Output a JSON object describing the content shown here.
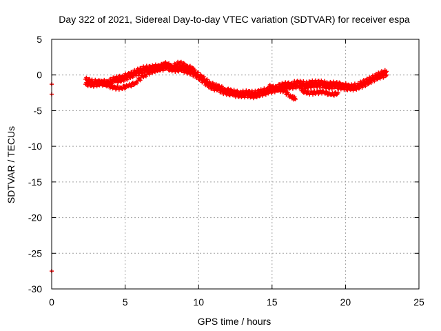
{
  "chart_data": {
    "type": "scatter",
    "title": "Day 322 of 2021, Sidereal Day-to-day VTEC variation (SDTVAR) for receiver espa",
    "xlabel": "GPS time / hours",
    "ylabel": "SDTVAR / TECUs",
    "xlim": [
      0,
      25
    ],
    "ylim": [
      -30,
      5
    ],
    "xticks": [
      0,
      5,
      10,
      15,
      20,
      25
    ],
    "yticks": [
      5,
      0,
      -5,
      -10,
      -15,
      -20,
      -25,
      -30
    ],
    "grid": true,
    "series": [
      {
        "name": "SDTVAR",
        "color": "#ff0000",
        "marker": "plus",
        "isolated_points": [
          {
            "x": 0.0,
            "y": -1.3
          },
          {
            "x": 0.0,
            "y": -2.7
          },
          {
            "x": 0.0,
            "y": -27.5
          }
        ],
        "tracks": [
          {
            "x": [
              2.3,
              2.8,
              3.3,
              3.8,
              4.3,
              4.8,
              5.3,
              5.8,
              6.3,
              6.8,
              7.3,
              7.8,
              8.3,
              8.8,
              9.3,
              9.8,
              10.3,
              10.8,
              11.3,
              11.8,
              12.3,
              12.8,
              13.3,
              13.8,
              14.3,
              14.8,
              15.3,
              15.8,
              16.3,
              16.8,
              17.3,
              17.8,
              18.3,
              18.8,
              19.3,
              19.8,
              20.3,
              20.8,
              21.3,
              21.8,
              22.3,
              22.8
            ],
            "y": [
              -0.6,
              -0.9,
              -1.0,
              -0.9,
              -0.5,
              -0.2,
              0.1,
              0.6,
              1.0,
              1.1,
              1.3,
              1.4,
              1.1,
              1.2,
              0.9,
              0.4,
              -0.4,
              -1.2,
              -1.6,
              -2.0,
              -2.3,
              -2.5,
              -2.4,
              -2.5,
              -2.2,
              -2.0,
              -1.6,
              -1.3,
              -1.2,
              -1.0,
              -1.2,
              -1.0,
              -1.0,
              -1.2,
              -1.2,
              -1.3,
              -1.6,
              -1.4,
              -0.9,
              -0.4,
              0.2,
              0.5
            ]
          },
          {
            "x": [
              2.3,
              2.8,
              3.3,
              3.8,
              4.3,
              4.8,
              5.3,
              5.8,
              6.3,
              6.8,
              7.3,
              7.8,
              8.3,
              8.8,
              9.3,
              9.8,
              10.3,
              10.8,
              11.3,
              11.8,
              12.3,
              12.8,
              13.3,
              13.8,
              14.3,
              14.8,
              15.3,
              15.8,
              16.3,
              16.8,
              17.3,
              17.8,
              18.3,
              18.8,
              19.3,
              19.8,
              20.3,
              20.8,
              21.3,
              21.8,
              22.3,
              22.8
            ],
            "y": [
              -1.3,
              -1.4,
              -1.3,
              -1.2,
              -0.9,
              -0.7,
              -0.3,
              0.2,
              0.6,
              0.7,
              0.8,
              0.9,
              0.7,
              0.7,
              0.4,
              -0.1,
              -0.9,
              -1.7,
              -2.1,
              -2.5,
              -2.8,
              -2.9,
              -2.9,
              -3.0,
              -2.7,
              -2.4,
              -2.1,
              -1.8,
              -1.7,
              -1.6,
              -1.7,
              -1.5,
              -1.5,
              -1.7,
              -1.7,
              -1.8,
              -2.0,
              -1.8,
              -1.4,
              -0.8,
              -0.3,
              0.0
            ]
          },
          {
            "x": [
              3.2,
              3.7,
              4.2,
              4.7,
              5.2,
              5.7,
              6.2,
              6.7,
              7.2,
              7.7,
              8.2,
              8.7,
              9.2,
              9.7
            ],
            "y": [
              -1.0,
              -1.3,
              -1.8,
              -1.8,
              -1.6,
              -1.1,
              -0.2,
              0.4,
              0.8,
              1.6,
              1.2,
              1.7,
              1.3,
              0.7
            ]
          },
          {
            "x": [
              14.8,
              15.3,
              15.8,
              16.3,
              16.6
            ],
            "y": [
              -1.6,
              -1.9,
              -2.3,
              -3.0,
              -3.4
            ]
          },
          {
            "x": [
              17.0,
              17.5,
              18.0,
              18.5,
              19.0,
              19.5
            ],
            "y": [
              -2.2,
              -2.5,
              -2.5,
              -2.3,
              -2.8,
              -2.5
            ]
          }
        ]
      }
    ]
  }
}
